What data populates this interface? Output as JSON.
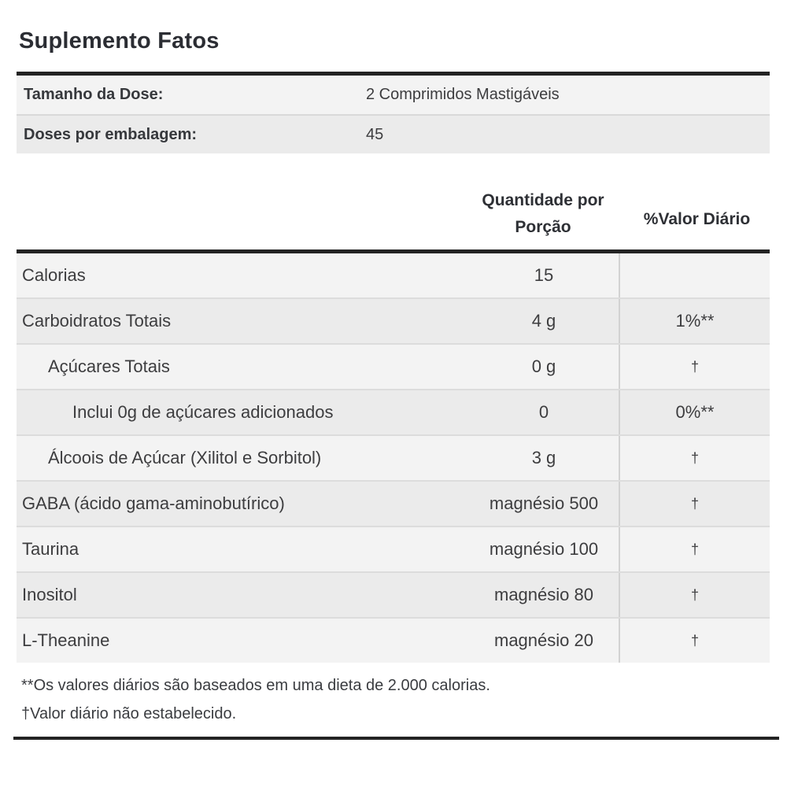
{
  "title": "Suplemento Fatos",
  "serving_info": {
    "rows": [
      {
        "label": "Tamanho da Dose:",
        "value": "2 Comprimidos Mastigáveis"
      },
      {
        "label": "Doses por embalagem:",
        "value": "45"
      }
    ]
  },
  "table": {
    "headers": {
      "amount": "Quantidade por Porção",
      "daily_value": "%Valor Diário"
    },
    "rows": [
      {
        "name": "Calorias",
        "amount": "15",
        "dv": ""
      },
      {
        "name": "Carboidratos Totais",
        "amount": "4 g",
        "dv": "1%**"
      },
      {
        "name": "Açúcares Totais",
        "amount": "0 g",
        "dv": "†"
      },
      {
        "name": "Inclui 0g de açúcares adicionados",
        "amount": "0",
        "dv": "0%**"
      },
      {
        "name": "Álcoois de Açúcar (Xilitol e Sorbitol)",
        "amount": "3 g",
        "dv": "†"
      },
      {
        "name": "GABA (ácido gama-aminobutírico)",
        "amount": "magnésio 500",
        "dv": "†"
      },
      {
        "name": "Taurina",
        "amount": "magnésio 100",
        "dv": "†"
      },
      {
        "name": "Inositol",
        "amount": "magnésio 80",
        "dv": "†"
      },
      {
        "name": "L-Theanine",
        "amount": "magnésio 20",
        "dv": "†"
      }
    ]
  },
  "footnotes": [
    "**Os valores diários são baseados em uma dieta de 2.000 calorias.",
    "†Valor diário não estabelecido."
  ],
  "colors": {
    "rule_dark": "#232323",
    "row_light": "#f3f3f3",
    "row_dark": "#ebebeb",
    "divider": "#d9d9d9",
    "text": "#3d3d3f"
  }
}
